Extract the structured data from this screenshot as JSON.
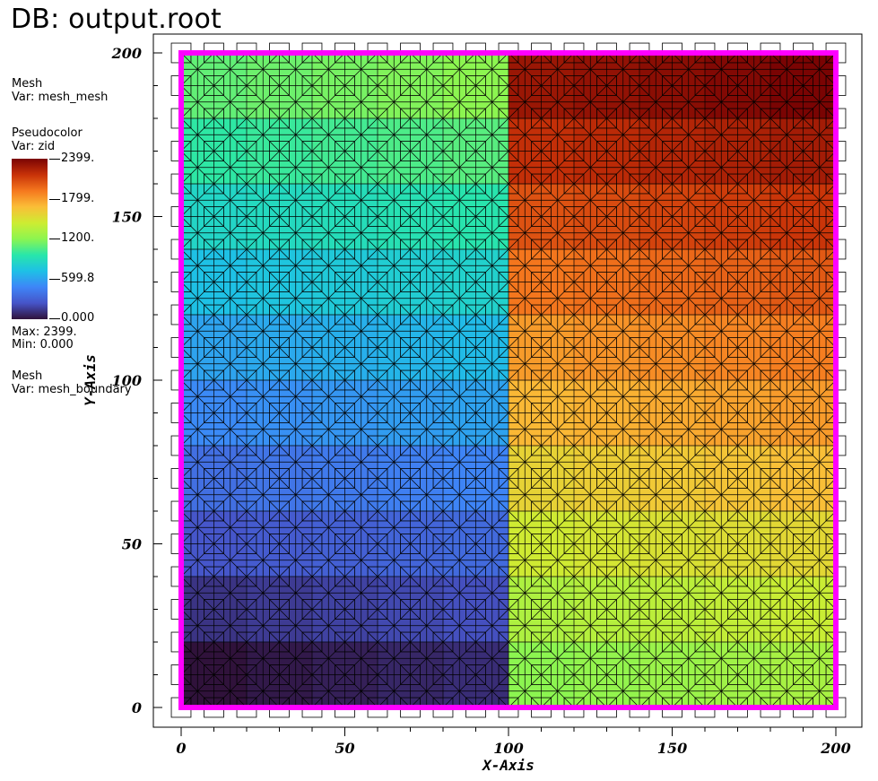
{
  "header": {
    "title": "DB: output.root"
  },
  "legend": {
    "mesh1": {
      "name": "Mesh",
      "var": "Var: mesh_mesh"
    },
    "pseudocolor": {
      "name": "Pseudocolor",
      "var": "Var: zid",
      "ticks": [
        "2399.",
        "1799.",
        "1200.",
        "599.8",
        "0.000"
      ],
      "max_label": "Max:  2399.",
      "min_label": "Min:  0.000"
    },
    "mesh2": {
      "name": "Mesh",
      "var": "Var: mesh_boundary"
    }
  },
  "chart_data": {
    "type": "heatmap",
    "title": "",
    "xlabel": "X-Axis",
    "ylabel": "Y-Axis",
    "xlim": [
      0,
      200
    ],
    "ylim": [
      0,
      200
    ],
    "x_ticks": [
      "0",
      "50",
      "100",
      "150",
      "200"
    ],
    "y_ticks": [
      "0",
      "50",
      "100",
      "150",
      "200"
    ],
    "colormap": "turbo",
    "value_range": [
      0,
      2399
    ],
    "boundary_color": "#ff00ff",
    "regions": [
      {
        "name": "bottom-left",
        "x": [
          0,
          100
        ],
        "y": [
          0,
          100
        ],
        "value_low": 0,
        "value_high": 599
      },
      {
        "name": "bottom-right",
        "x": [
          100,
          200
        ],
        "y": [
          0,
          100
        ],
        "value_low": 1200,
        "value_high": 1799
      },
      {
        "name": "top-left",
        "x": [
          0,
          100
        ],
        "y": [
          100,
          200
        ],
        "value_low": 600,
        "value_high": 1199
      },
      {
        "name": "top-right",
        "x": [
          100,
          200
        ],
        "y": [
          100,
          200
        ],
        "value_low": 1800,
        "value_high": 2399
      }
    ]
  }
}
